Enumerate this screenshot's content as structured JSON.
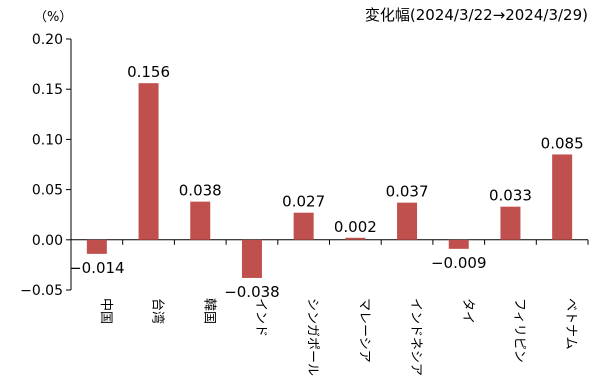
{
  "header": {
    "unit": "（%）",
    "subtitle": "変化幅(2024/3/22→2024/3/29)"
  },
  "chart_data": {
    "type": "bar",
    "categories": [
      "中国",
      "台湾",
      "韓国",
      "インド",
      "シンガポール",
      "マレーシア",
      "インドネシア",
      "タイ",
      "フィリピン",
      "ベトナム"
    ],
    "values": [
      -0.014,
      0.156,
      0.038,
      -0.038,
      0.027,
      0.002,
      0.037,
      -0.009,
      0.033,
      0.085
    ],
    "data_labels": [
      "−0.014",
      "0.156",
      "0.038",
      "−0.038",
      "0.027",
      "0.002",
      "0.037",
      "−0.009",
      "0.033",
      "0.085"
    ],
    "ylim": [
      -0.05,
      0.2
    ],
    "yticks": [
      -0.05,
      0.0,
      0.05,
      0.1,
      0.15,
      0.2
    ],
    "ytick_labels": [
      "−0.05",
      "0.00",
      "0.05",
      "0.10",
      "0.15",
      "0.20"
    ],
    "bar_color": "#c0504d",
    "grid": false,
    "legend": "none"
  }
}
